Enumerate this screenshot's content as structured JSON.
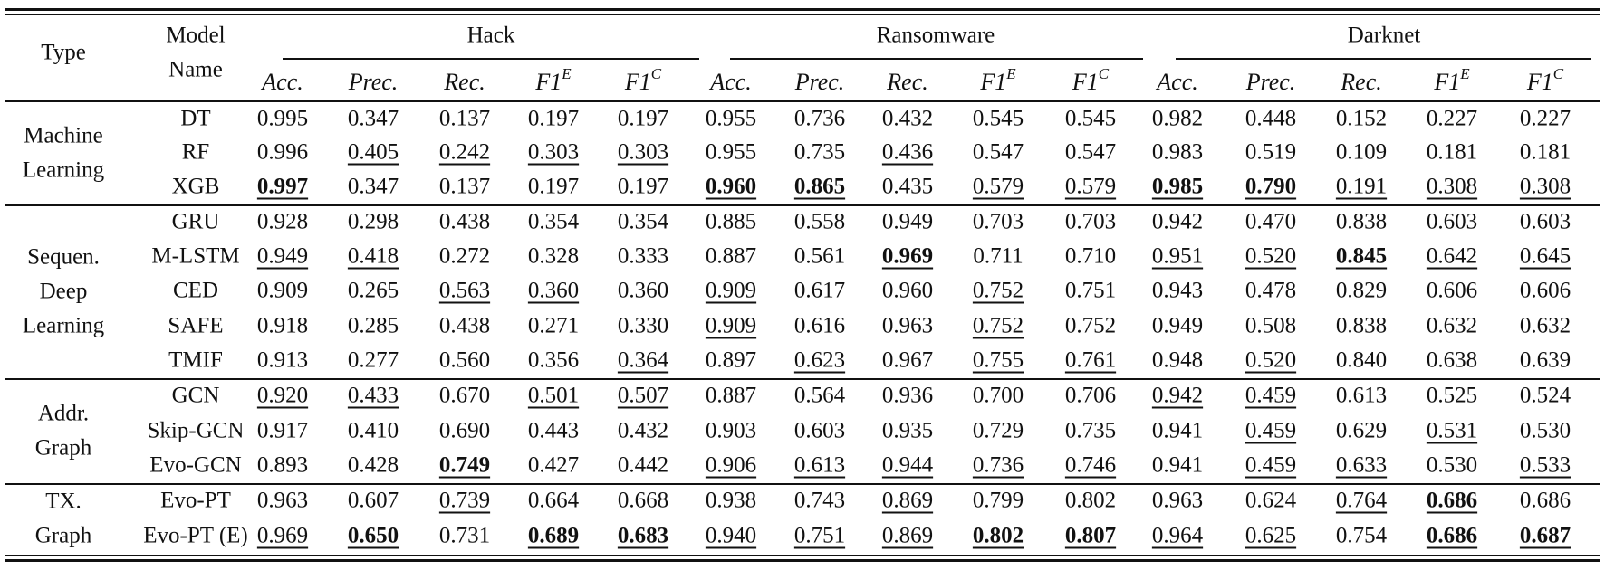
{
  "header": {
    "type_label": "Type",
    "model_label_line1": "Model",
    "model_label_line2": "Name",
    "groups": [
      "Hack",
      "Ransomware",
      "Darknet"
    ],
    "metrics": [
      {
        "base": "Acc.",
        "sup": ""
      },
      {
        "base": "Prec.",
        "sup": ""
      },
      {
        "base": "Rec.",
        "sup": ""
      },
      {
        "base": "F1",
        "sup": "E"
      },
      {
        "base": "F1",
        "sup": "C"
      }
    ]
  },
  "sections": [
    {
      "type_lines": [
        "Machine",
        "Learning"
      ],
      "start": 0,
      "count": 3
    },
    {
      "type_lines": [
        "Sequen.",
        "Deep",
        "Learning"
      ],
      "start": 3,
      "count": 5
    },
    {
      "type_lines": [
        "Addr.",
        "Graph"
      ],
      "start": 8,
      "count": 3
    },
    {
      "type_lines": [
        "TX.",
        "Graph"
      ],
      "start": 11,
      "count": 2
    }
  ],
  "rows": [
    {
      "model": "DT",
      "values": [
        "0.995",
        "0.347",
        "0.137",
        "0.197",
        "0.197",
        "0.955",
        "0.736",
        "0.432",
        "0.545",
        "0.545",
        "0.982",
        "0.448",
        "0.152",
        "0.227",
        "0.227"
      ],
      "styles": [
        "",
        "",
        "",
        "",
        "",
        "",
        "",
        "",
        "",
        "",
        "",
        "",
        "",
        "",
        ""
      ]
    },
    {
      "model": "RF",
      "values": [
        "0.996",
        "0.405",
        "0.242",
        "0.303",
        "0.303",
        "0.955",
        "0.735",
        "0.436",
        "0.547",
        "0.547",
        "0.983",
        "0.519",
        "0.109",
        "0.181",
        "0.181"
      ],
      "styles": [
        "",
        "u",
        "u",
        "u",
        "u",
        "",
        "",
        "u",
        "",
        "",
        "",
        "",
        "",
        "",
        ""
      ]
    },
    {
      "model": "XGB",
      "values": [
        "0.997",
        "0.347",
        "0.137",
        "0.197",
        "0.197",
        "0.960",
        "0.865",
        "0.435",
        "0.579",
        "0.579",
        "0.985",
        "0.790",
        "0.191",
        "0.308",
        "0.308"
      ],
      "styles": [
        "bu",
        "",
        "",
        "",
        "",
        "bu",
        "bu",
        "",
        "u",
        "u",
        "bu",
        "bu",
        "u",
        "u",
        "u"
      ]
    },
    {
      "model": "GRU",
      "values": [
        "0.928",
        "0.298",
        "0.438",
        "0.354",
        "0.354",
        "0.885",
        "0.558",
        "0.949",
        "0.703",
        "0.703",
        "0.942",
        "0.470",
        "0.838",
        "0.603",
        "0.603"
      ],
      "styles": [
        "",
        "",
        "",
        "",
        "",
        "",
        "",
        "",
        "",
        "",
        "",
        "",
        "",
        "",
        ""
      ]
    },
    {
      "model": "M-LSTM",
      "values": [
        "0.949",
        "0.418",
        "0.272",
        "0.328",
        "0.333",
        "0.887",
        "0.561",
        "0.969",
        "0.711",
        "0.710",
        "0.951",
        "0.520",
        "0.845",
        "0.642",
        "0.645"
      ],
      "styles": [
        "u",
        "u",
        "",
        "",
        "",
        "",
        "",
        "bu",
        "",
        "",
        "u",
        "u",
        "bu",
        "u",
        "u"
      ]
    },
    {
      "model": "CED",
      "values": [
        "0.909",
        "0.265",
        "0.563",
        "0.360",
        "0.360",
        "0.909",
        "0.617",
        "0.960",
        "0.752",
        "0.751",
        "0.943",
        "0.478",
        "0.829",
        "0.606",
        "0.606"
      ],
      "styles": [
        "",
        "",
        "u",
        "u",
        "",
        "u",
        "",
        "",
        "u",
        "",
        "",
        "",
        "",
        "",
        ""
      ]
    },
    {
      "model": "SAFE",
      "values": [
        "0.918",
        "0.285",
        "0.438",
        "0.271",
        "0.330",
        "0.909",
        "0.616",
        "0.963",
        "0.752",
        "0.752",
        "0.949",
        "0.508",
        "0.838",
        "0.632",
        "0.632"
      ],
      "styles": [
        "",
        "",
        "",
        "",
        "",
        "u",
        "",
        "",
        "u",
        "",
        "",
        "",
        "",
        "",
        ""
      ]
    },
    {
      "model": "TMIF",
      "values": [
        "0.913",
        "0.277",
        "0.560",
        "0.356",
        "0.364",
        "0.897",
        "0.623",
        "0.967",
        "0.755",
        "0.761",
        "0.948",
        "0.520",
        "0.840",
        "0.638",
        "0.639"
      ],
      "styles": [
        "",
        "",
        "",
        "",
        "u",
        "",
        "u",
        "",
        "u",
        "u",
        "",
        "u",
        "",
        "",
        ""
      ]
    },
    {
      "model": "GCN",
      "values": [
        "0.920",
        "0.433",
        "0.670",
        "0.501",
        "0.507",
        "0.887",
        "0.564",
        "0.936",
        "0.700",
        "0.706",
        "0.942",
        "0.459",
        "0.613",
        "0.525",
        "0.524"
      ],
      "styles": [
        "u",
        "u",
        "",
        "u",
        "u",
        "",
        "",
        "",
        "",
        "",
        "u",
        "u",
        "",
        "",
        ""
      ]
    },
    {
      "model": "Skip-GCN",
      "values": [
        "0.917",
        "0.410",
        "0.690",
        "0.443",
        "0.432",
        "0.903",
        "0.603",
        "0.935",
        "0.729",
        "0.735",
        "0.941",
        "0.459",
        "0.629",
        "0.531",
        "0.530"
      ],
      "styles": [
        "",
        "",
        "",
        "",
        "",
        "",
        "",
        "",
        "",
        "",
        "",
        "u",
        "",
        "u",
        ""
      ]
    },
    {
      "model": "Evo-GCN",
      "values": [
        "0.893",
        "0.428",
        "0.749",
        "0.427",
        "0.442",
        "0.906",
        "0.613",
        "0.944",
        "0.736",
        "0.746",
        "0.941",
        "0.459",
        "0.633",
        "0.530",
        "0.533"
      ],
      "styles": [
        "",
        "",
        "bu",
        "",
        "",
        "u",
        "u",
        "u",
        "u",
        "u",
        "",
        "u",
        "u",
        "",
        "u"
      ]
    },
    {
      "model": "Evo-PT",
      "values": [
        "0.963",
        "0.607",
        "0.739",
        "0.664",
        "0.668",
        "0.938",
        "0.743",
        "0.869",
        "0.799",
        "0.802",
        "0.963",
        "0.624",
        "0.764",
        "0.686",
        "0.686"
      ],
      "styles": [
        "",
        "",
        "u",
        "",
        "",
        "",
        "",
        "u",
        "",
        "",
        "",
        "",
        "u",
        "bu",
        ""
      ]
    },
    {
      "model": "Evo-PT (E)",
      "values": [
        "0.969",
        "0.650",
        "0.731",
        "0.689",
        "0.683",
        "0.940",
        "0.751",
        "0.869",
        "0.802",
        "0.807",
        "0.964",
        "0.625",
        "0.754",
        "0.686",
        "0.687"
      ],
      "styles": [
        "u",
        "bu",
        "",
        "bu",
        "bu",
        "u",
        "u",
        "u",
        "bu",
        "bu",
        "u",
        "u",
        "",
        "bu",
        "bu"
      ]
    }
  ]
}
